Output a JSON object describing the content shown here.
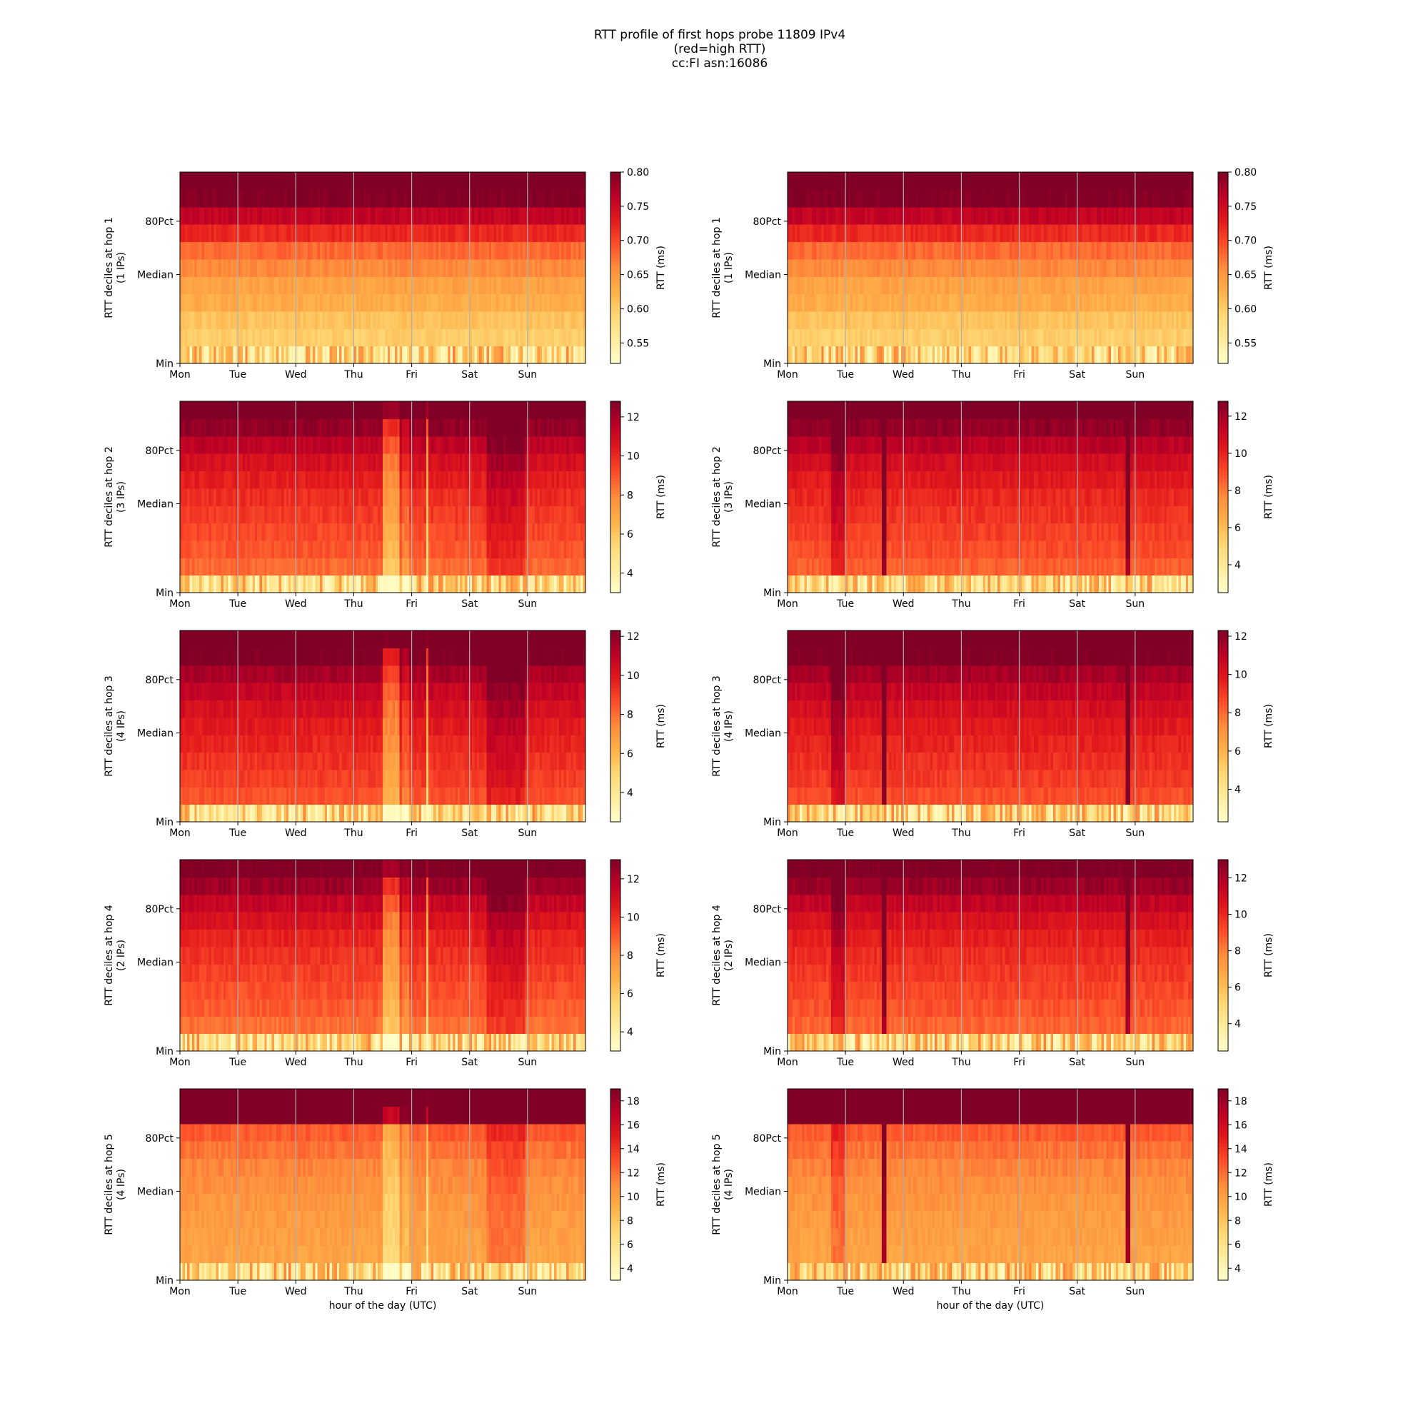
{
  "figure": {
    "title_lines": [
      "RTT profile of first hops probe 11809 IPv4",
      "(red=high RTT)",
      "cc:FI asn:16086"
    ]
  },
  "colormap": {
    "name": "YlOrRd",
    "stops": [
      "#ffffcc",
      "#ffeda0",
      "#fed976",
      "#feb24c",
      "#fd8d3c",
      "#fc4e2a",
      "#e31a1c",
      "#bd0026",
      "#800026"
    ]
  },
  "chart_data": [
    {
      "type": "heatmap",
      "panel": "hop1-left",
      "ylabel_lines": [
        "RTT deciles at hop 1",
        "(1 IPs)"
      ],
      "xticks": [
        "Mon",
        "Tue",
        "Wed",
        "Thu",
        "Fri",
        "Sat",
        "Sun"
      ],
      "yticks": [
        "Min",
        "Median",
        "80Pct"
      ],
      "xlabel": "",
      "colorbar": {
        "label": "RTT (ms)",
        "min": 0.52,
        "max": 0.8,
        "ticks": [
          "0.55",
          "0.60",
          "0.65",
          "0.70",
          "0.75",
          "0.80"
        ],
        "tick_values": [
          0.55,
          0.6,
          0.65,
          0.7,
          0.75,
          0.8
        ]
      },
      "deciles_ms": [
        0.54,
        0.6,
        0.61,
        0.63,
        0.64,
        0.66,
        0.68,
        0.72,
        0.76,
        0.8,
        0.83
      ],
      "events": []
    },
    {
      "type": "heatmap",
      "panel": "hop1-right",
      "ylabel_lines": [
        "RTT deciles at hop 1",
        "(1 IPs)"
      ],
      "xticks": [
        "Mon",
        "Tue",
        "Wed",
        "Thu",
        "Fri",
        "Sat",
        "Sun"
      ],
      "yticks": [
        "Min",
        "Median",
        "80Pct"
      ],
      "xlabel": "",
      "colorbar": {
        "label": "RTT (ms)",
        "min": 0.52,
        "max": 0.8,
        "ticks": [
          "0.55",
          "0.60",
          "0.65",
          "0.70",
          "0.75",
          "0.80"
        ],
        "tick_values": [
          0.55,
          0.6,
          0.65,
          0.7,
          0.75,
          0.8
        ]
      },
      "deciles_ms": [
        0.54,
        0.6,
        0.61,
        0.63,
        0.64,
        0.66,
        0.68,
        0.72,
        0.76,
        0.8,
        0.83
      ],
      "events": []
    },
    {
      "type": "heatmap",
      "panel": "hop2-left",
      "ylabel_lines": [
        "RTT deciles at hop 2",
        "(3 IPs)"
      ],
      "xticks": [
        "Mon",
        "Tue",
        "Wed",
        "Thu",
        "Fri",
        "Sat",
        "Sun"
      ],
      "yticks": [
        "Min",
        "Median",
        "80Pct"
      ],
      "xlabel": "",
      "colorbar": {
        "label": "RTT (ms)",
        "min": 3.0,
        "max": 12.8,
        "ticks": [
          "4",
          "6",
          "8",
          "10",
          "12"
        ],
        "tick_values": [
          4,
          6,
          8,
          10,
          12
        ]
      },
      "deciles_ms": [
        4.0,
        8.6,
        9.0,
        9.3,
        9.6,
        9.9,
        10.3,
        10.8,
        11.5,
        12.4,
        13.0
      ],
      "events": [
        {
          "day_start": 3.5,
          "day_end": 3.8,
          "shift": -2.5,
          "skip": 0
        },
        {
          "day_start": 3.84,
          "day_end": 3.94,
          "shift": -1.0,
          "skip": 0
        },
        {
          "day_start": 4.23,
          "day_end": 4.3,
          "shift": -3.5,
          "skip": 0
        },
        {
          "day_start": 5.3,
          "day_end": 5.95,
          "shift": 1.2,
          "skip": 0
        }
      ]
    },
    {
      "type": "heatmap",
      "panel": "hop2-right",
      "ylabel_lines": [
        "RTT deciles at hop 2",
        "(3 IPs)"
      ],
      "xticks": [
        "Mon",
        "Tue",
        "Wed",
        "Thu",
        "Fri",
        "Sat",
        "Sun"
      ],
      "yticks": [
        "Min",
        "Median",
        "80Pct"
      ],
      "xlabel": "",
      "colorbar": {
        "label": "RTT (ms)",
        "min": 2.5,
        "max": 12.8,
        "ticks": [
          "4",
          "6",
          "8",
          "10",
          "12"
        ],
        "tick_values": [
          4,
          6,
          8,
          10,
          12
        ]
      },
      "deciles_ms": [
        4.0,
        8.6,
        9.0,
        9.3,
        9.6,
        9.9,
        10.3,
        10.8,
        11.5,
        12.4,
        13.0
      ],
      "events": [
        {
          "day_start": 0.75,
          "day_end": 0.98,
          "shift": 1.5,
          "skip": 0
        },
        {
          "day_start": 1.63,
          "day_end": 1.7,
          "shift": 3.5,
          "skip": 0
        },
        {
          "day_start": 5.85,
          "day_end": 5.93,
          "shift": 3.5,
          "skip": 0
        }
      ]
    },
    {
      "type": "heatmap",
      "panel": "hop3-left",
      "ylabel_lines": [
        "RTT deciles at hop 3",
        "(4 IPs)"
      ],
      "xticks": [
        "Mon",
        "Tue",
        "Wed",
        "Thu",
        "Fri",
        "Sat",
        "Sun"
      ],
      "yticks": [
        "Min",
        "Median",
        "80Pct"
      ],
      "xlabel": "",
      "colorbar": {
        "label": "RTT (ms)",
        "min": 2.5,
        "max": 12.3,
        "ticks": [
          "4",
          "6",
          "8",
          "10",
          "12"
        ],
        "tick_values": [
          4,
          6,
          8,
          10,
          12
        ]
      },
      "deciles_ms": [
        4.0,
        8.6,
        9.0,
        9.3,
        9.6,
        9.9,
        10.3,
        10.8,
        11.5,
        12.4,
        13.0
      ],
      "events": [
        {
          "day_start": 3.5,
          "day_end": 3.8,
          "shift": -2.5,
          "skip": 0
        },
        {
          "day_start": 3.84,
          "day_end": 3.94,
          "shift": -1.0,
          "skip": 0
        },
        {
          "day_start": 4.23,
          "day_end": 4.3,
          "shift": -3.5,
          "skip": 0
        },
        {
          "day_start": 5.3,
          "day_end": 5.95,
          "shift": 1.2,
          "skip": 0
        }
      ]
    },
    {
      "type": "heatmap",
      "panel": "hop3-right",
      "ylabel_lines": [
        "RTT deciles at hop 3",
        "(4 IPs)"
      ],
      "xticks": [
        "Mon",
        "Tue",
        "Wed",
        "Thu",
        "Fri",
        "Sat",
        "Sun"
      ],
      "yticks": [
        "Min",
        "Median",
        "80Pct"
      ],
      "xlabel": "",
      "colorbar": {
        "label": "RTT (ms)",
        "min": 2.3,
        "max": 12.3,
        "ticks": [
          "4",
          "6",
          "8",
          "10",
          "12"
        ],
        "tick_values": [
          4,
          6,
          8,
          10,
          12
        ]
      },
      "deciles_ms": [
        4.0,
        8.6,
        9.0,
        9.3,
        9.6,
        9.9,
        10.3,
        10.8,
        11.5,
        12.4,
        13.0
      ],
      "events": [
        {
          "day_start": 0.75,
          "day_end": 0.98,
          "shift": 1.5,
          "skip": 0
        },
        {
          "day_start": 1.63,
          "day_end": 1.7,
          "shift": 3.5,
          "skip": 0
        },
        {
          "day_start": 5.85,
          "day_end": 5.93,
          "shift": 3.5,
          "skip": 0
        }
      ]
    },
    {
      "type": "heatmap",
      "panel": "hop4-left",
      "ylabel_lines": [
        "RTT deciles at hop 4",
        "(2 IPs)"
      ],
      "xticks": [
        "Mon",
        "Tue",
        "Wed",
        "Thu",
        "Fri",
        "Sat",
        "Sun"
      ],
      "yticks": [
        "Min",
        "Median",
        "80Pct"
      ],
      "xlabel": "",
      "colorbar": {
        "label": "RTT (ms)",
        "min": 3.0,
        "max": 13.0,
        "ticks": [
          "4",
          "6",
          "8",
          "10",
          "12"
        ],
        "tick_values": [
          4,
          6,
          8,
          10,
          12
        ]
      },
      "deciles_ms": [
        4.0,
        8.6,
        9.0,
        9.3,
        9.6,
        9.9,
        10.3,
        10.8,
        11.5,
        12.4,
        13.0
      ],
      "events": [
        {
          "day_start": 3.5,
          "day_end": 3.8,
          "shift": -2.5,
          "skip": 0
        },
        {
          "day_start": 3.84,
          "day_end": 3.94,
          "shift": -1.0,
          "skip": 0
        },
        {
          "day_start": 4.23,
          "day_end": 4.3,
          "shift": -3.5,
          "skip": 0
        },
        {
          "day_start": 5.3,
          "day_end": 5.95,
          "shift": 1.2,
          "skip": 0
        }
      ]
    },
    {
      "type": "heatmap",
      "panel": "hop4-right",
      "ylabel_lines": [
        "RTT deciles at hop 4",
        "(2 IPs)"
      ],
      "xticks": [
        "Mon",
        "Tue",
        "Wed",
        "Thu",
        "Fri",
        "Sat",
        "Sun"
      ],
      "yticks": [
        "Min",
        "Median",
        "80Pct"
      ],
      "xlabel": "",
      "colorbar": {
        "label": "RTT (ms)",
        "min": 2.5,
        "max": 13.0,
        "ticks": [
          "4",
          "6",
          "8",
          "10",
          "12"
        ],
        "tick_values": [
          4,
          6,
          8,
          10,
          12
        ]
      },
      "deciles_ms": [
        4.0,
        8.6,
        9.0,
        9.3,
        9.6,
        9.9,
        10.3,
        10.8,
        11.5,
        12.4,
        13.0
      ],
      "events": [
        {
          "day_start": 0.75,
          "day_end": 0.98,
          "shift": 1.5,
          "skip": 0
        },
        {
          "day_start": 1.63,
          "day_end": 1.7,
          "shift": 3.5,
          "skip": 0
        },
        {
          "day_start": 5.85,
          "day_end": 5.93,
          "shift": 3.5,
          "skip": 0
        }
      ]
    },
    {
      "type": "heatmap",
      "panel": "hop5-left",
      "ylabel_lines": [
        "RTT deciles at hop 5",
        "(4 IPs)"
      ],
      "xticks": [
        "Mon",
        "Tue",
        "Wed",
        "Thu",
        "Fri",
        "Sat",
        "Sun"
      ],
      "yticks": [
        "Min",
        "Median",
        "80Pct"
      ],
      "xlabel": "hour of the day (UTC)",
      "colorbar": {
        "label": "RTT (ms)",
        "min": 3.0,
        "max": 19.0,
        "ticks": [
          "4",
          "6",
          "8",
          "10",
          "12",
          "14",
          "16",
          "18"
        ],
        "tick_values": [
          4,
          6,
          8,
          10,
          12,
          14,
          16,
          18
        ]
      },
      "deciles_ms": [
        4.0,
        9.8,
        10.0,
        10.2,
        10.5,
        10.8,
        11.2,
        11.8,
        12.6,
        19.5,
        20.0
      ],
      "events": [
        {
          "day_start": 3.5,
          "day_end": 3.8,
          "shift": -3.0,
          "skip": 0
        },
        {
          "day_start": 3.84,
          "day_end": 3.94,
          "shift": -1.5,
          "skip": 0
        },
        {
          "day_start": 4.23,
          "day_end": 4.3,
          "shift": -3.5,
          "skip": 0
        },
        {
          "day_start": 5.3,
          "day_end": 5.95,
          "shift": 1.8,
          "skip": 0
        }
      ]
    },
    {
      "type": "heatmap",
      "panel": "hop5-right",
      "ylabel_lines": [
        "RTT deciles at hop 5",
        "(4 IPs)"
      ],
      "xticks": [
        "Mon",
        "Tue",
        "Wed",
        "Thu",
        "Fri",
        "Sat",
        "Sun"
      ],
      "yticks": [
        "Min",
        "Median",
        "80Pct"
      ],
      "xlabel": "hour of the day (UTC)",
      "colorbar": {
        "label": "RTT (ms)",
        "min": 3.0,
        "max": 19.0,
        "ticks": [
          "4",
          "6",
          "8",
          "10",
          "12",
          "14",
          "16",
          "18"
        ],
        "tick_values": [
          4,
          6,
          8,
          10,
          12,
          14,
          16,
          18
        ]
      },
      "deciles_ms": [
        4.0,
        9.8,
        10.0,
        10.2,
        10.5,
        10.8,
        11.2,
        11.8,
        12.6,
        19.5,
        20.0
      ],
      "events": [
        {
          "day_start": 0.75,
          "day_end": 0.98,
          "shift": 2.0,
          "skip": 0
        },
        {
          "day_start": 1.63,
          "day_end": 1.7,
          "shift": 8.0,
          "skip": 0
        },
        {
          "day_start": 5.85,
          "day_end": 5.93,
          "shift": 8.0,
          "skip": 0
        }
      ]
    }
  ]
}
